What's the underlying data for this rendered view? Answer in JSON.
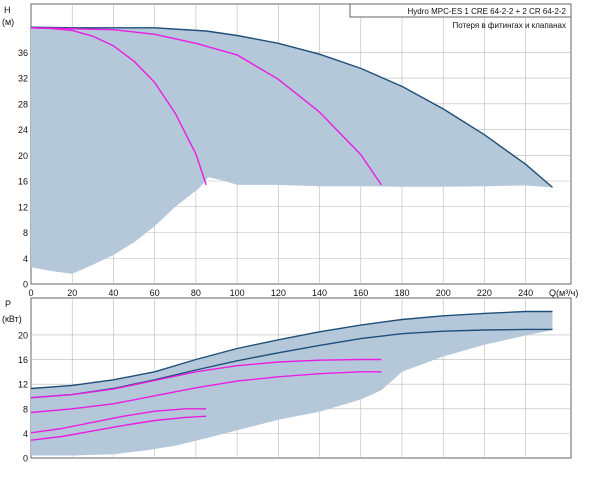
{
  "colors": {
    "background": "#ffffff",
    "plot_background": "#ffffff",
    "grid": "#b9b9b9",
    "frame": "#666666",
    "envelope_fill": "#b4c8da",
    "system_curve": "#1f4e79",
    "pump_curve": "#e91ee0"
  },
  "chart_data": [
    {
      "type": "area",
      "legend": {
        "title": "Hydro MPC-ES 1 CRE 64-2-2  +  2 CR 64-2-2",
        "subtitle": "Потеря в фитингах и клапанах",
        "placement": "top-right"
      },
      "yaxis": {
        "label": "H",
        "unit": "(м)",
        "range": [
          0,
          43.5
        ],
        "ticks": [
          0,
          4,
          8,
          12,
          16,
          20,
          24,
          28,
          32,
          36
        ]
      },
      "xaxis": {
        "label": "Q(м³/ч)",
        "range": [
          0,
          262
        ],
        "ticks": [
          0,
          20,
          40,
          60,
          80,
          100,
          120,
          140,
          160,
          180,
          200,
          220,
          240
        ]
      },
      "grid": true,
      "envelope_upper": [
        [
          0,
          39.9
        ],
        [
          20,
          39.8
        ],
        [
          60,
          39.8
        ],
        [
          85,
          39.3
        ],
        [
          100,
          38.6
        ],
        [
          120,
          37.4
        ],
        [
          140,
          35.7
        ],
        [
          160,
          33.5
        ],
        [
          180,
          30.7
        ],
        [
          200,
          27.2
        ],
        [
          220,
          23.2
        ],
        [
          240,
          18.6
        ],
        [
          253,
          15.0
        ]
      ],
      "envelope_lower": [
        [
          253,
          15.0
        ],
        [
          240,
          15.3
        ],
        [
          220,
          15.2
        ],
        [
          200,
          15.1
        ],
        [
          180,
          15.1
        ],
        [
          160,
          15.2
        ],
        [
          140,
          15.2
        ],
        [
          120,
          15.4
        ],
        [
          100,
          15.4
        ],
        [
          94,
          16.0
        ],
        [
          86,
          16.6
        ],
        [
          82,
          15.0
        ],
        [
          70,
          12.0
        ],
        [
          60,
          9.0
        ],
        [
          50,
          6.5
        ],
        [
          40,
          4.5
        ],
        [
          30,
          3.0
        ],
        [
          20,
          1.6
        ],
        [
          10,
          2.0
        ],
        [
          0,
          2.6
        ]
      ],
      "series": [
        {
          "role": "max-head",
          "color": "#1f4e79",
          "points": [
            [
              0,
              39.9
            ],
            [
              20,
              39.8
            ],
            [
              60,
              39.8
            ],
            [
              85,
              39.3
            ],
            [
              100,
              38.6
            ],
            [
              120,
              37.4
            ],
            [
              140,
              35.7
            ],
            [
              160,
              33.5
            ],
            [
              180,
              30.7
            ],
            [
              200,
              27.2
            ],
            [
              220,
              23.2
            ],
            [
              240,
              18.6
            ],
            [
              253,
              15.0
            ]
          ]
        },
        {
          "role": "pump-1",
          "color": "#e91ee0",
          "points": [
            [
              0,
              39.8
            ],
            [
              10,
              39.7
            ],
            [
              20,
              39.4
            ],
            [
              30,
              38.5
            ],
            [
              40,
              37.0
            ],
            [
              50,
              34.6
            ],
            [
              60,
              31.3
            ],
            [
              70,
              26.5
            ],
            [
              80,
              20.2
            ],
            [
              85,
              15.4
            ]
          ]
        },
        {
          "role": "pump-2",
          "color": "#e91ee0",
          "points": [
            [
              0,
              39.8
            ],
            [
              40,
              39.5
            ],
            [
              60,
              38.8
            ],
            [
              80,
              37.4
            ],
            [
              100,
              35.6
            ],
            [
              120,
              31.8
            ],
            [
              140,
              26.7
            ],
            [
              160,
              20.1
            ],
            [
              170,
              15.4
            ]
          ]
        }
      ]
    },
    {
      "type": "area",
      "yaxis": {
        "label": "P",
        "unit": "(кВт)",
        "range": [
          0,
          26
        ],
        "ticks": [
          0,
          4,
          8,
          12,
          16,
          20
        ]
      },
      "xaxis": {
        "range": [
          0,
          262
        ]
      },
      "grid": true,
      "envelope_upper": [
        [
          0,
          11.3
        ],
        [
          20,
          11.8
        ],
        [
          40,
          12.7
        ],
        [
          60,
          14.0
        ],
        [
          80,
          16.0
        ],
        [
          100,
          17.8
        ],
        [
          120,
          19.2
        ],
        [
          140,
          20.5
        ],
        [
          160,
          21.6
        ],
        [
          180,
          22.5
        ],
        [
          200,
          23.1
        ],
        [
          220,
          23.5
        ],
        [
          240,
          23.8
        ],
        [
          253,
          23.8
        ]
      ],
      "envelope_lower": [
        [
          253,
          20.8
        ],
        [
          240,
          19.9
        ],
        [
          220,
          18.4
        ],
        [
          200,
          16.5
        ],
        [
          180,
          14.0
        ],
        [
          170,
          11.0
        ],
        [
          160,
          9.5
        ],
        [
          140,
          7.5
        ],
        [
          120,
          6.2
        ],
        [
          100,
          4.5
        ],
        [
          85,
          3.2
        ],
        [
          70,
          2.0
        ],
        [
          55,
          1.2
        ],
        [
          40,
          0.6
        ],
        [
          20,
          0.4
        ],
        [
          0,
          0.4
        ]
      ],
      "series": [
        {
          "role": "max-power",
          "color": "#1f4e79",
          "points": [
            [
              0,
              11.3
            ],
            [
              20,
              11.8
            ],
            [
              40,
              12.7
            ],
            [
              60,
              14.0
            ],
            [
              80,
              16.0
            ],
            [
              100,
              17.8
            ],
            [
              120,
              19.2
            ],
            [
              140,
              20.5
            ],
            [
              160,
              21.6
            ],
            [
              180,
              22.5
            ],
            [
              200,
              23.1
            ],
            [
              220,
              23.5
            ],
            [
              240,
              23.8
            ],
            [
              253,
              23.8
            ]
          ]
        },
        {
          "role": "secondary-power",
          "color": "#1f4e79",
          "points": [
            [
              0,
              9.8
            ],
            [
              20,
              10.3
            ],
            [
              40,
              11.3
            ],
            [
              60,
              12.7
            ],
            [
              80,
              14.3
            ],
            [
              100,
              15.8
            ],
            [
              120,
              17.1
            ],
            [
              140,
              18.3
            ],
            [
              160,
              19.4
            ],
            [
              180,
              20.2
            ],
            [
              200,
              20.6
            ],
            [
              220,
              20.8
            ],
            [
              240,
              20.9
            ],
            [
              253,
              20.9
            ]
          ]
        },
        {
          "role": "pump-p1",
          "color": "#e91ee0",
          "points": [
            [
              0,
              9.8
            ],
            [
              20,
              10.3
            ],
            [
              40,
              11.2
            ],
            [
              60,
              12.6
            ],
            [
              80,
              14.0
            ],
            [
              100,
              15.0
            ],
            [
              120,
              15.6
            ],
            [
              140,
              15.9
            ],
            [
              160,
              16.0
            ],
            [
              170,
              16.0
            ]
          ]
        },
        {
          "role": "pump-p2",
          "color": "#e91ee0",
          "points": [
            [
              0,
              7.4
            ],
            [
              20,
              8.0
            ],
            [
              40,
              8.8
            ],
            [
              60,
              10.1
            ],
            [
              80,
              11.4
            ],
            [
              100,
              12.5
            ],
            [
              120,
              13.2
            ],
            [
              140,
              13.7
            ],
            [
              160,
              14.0
            ],
            [
              170,
              14.0
            ]
          ]
        },
        {
          "role": "pump-p3",
          "color": "#e91ee0",
          "points": [
            [
              0,
              4.1
            ],
            [
              15,
              4.8
            ],
            [
              30,
              5.8
            ],
            [
              45,
              6.8
            ],
            [
              60,
              7.6
            ],
            [
              75,
              8.0
            ],
            [
              85,
              8.0
            ]
          ]
        },
        {
          "role": "pump-p4",
          "color": "#e91ee0",
          "points": [
            [
              0,
              2.9
            ],
            [
              15,
              3.5
            ],
            [
              30,
              4.4
            ],
            [
              45,
              5.3
            ],
            [
              60,
              6.1
            ],
            [
              75,
              6.6
            ],
            [
              85,
              6.8
            ]
          ]
        }
      ]
    }
  ]
}
